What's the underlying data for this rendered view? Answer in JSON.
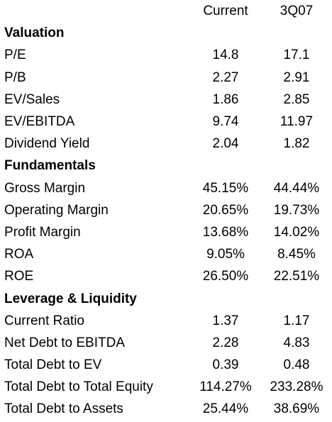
{
  "columns": {
    "current": "Current",
    "prior": "3Q07"
  },
  "sections": [
    {
      "title": "Valuation",
      "rows": [
        {
          "label": "P/E",
          "current": "14.8",
          "prior": "17.1"
        },
        {
          "label": "P/B",
          "current": "2.27",
          "prior": "2.91"
        },
        {
          "label": "EV/Sales",
          "current": "1.86",
          "prior": "2.85"
        },
        {
          "label": "EV/EBITDA",
          "current": "9.74",
          "prior": "11.97"
        },
        {
          "label": "Dividend Yield",
          "current": "2.04",
          "prior": "1.82"
        }
      ]
    },
    {
      "title": "Fundamentals",
      "rows": [
        {
          "label": "Gross Margin",
          "current": "45.15%",
          "prior": "44.44%"
        },
        {
          "label": "Operating Margin",
          "current": "20.65%",
          "prior": "19.73%"
        },
        {
          "label": "Profit Margin",
          "current": "13.68%",
          "prior": "14.02%"
        },
        {
          "label": "ROA",
          "current": "9.05%",
          "prior": "8.45%"
        },
        {
          "label": "ROE",
          "current": "26.50%",
          "prior": "22.51%"
        }
      ]
    },
    {
      "title": "Leverage & Liquidity",
      "rows": [
        {
          "label": "Current Ratio",
          "current": "1.37",
          "prior": "1.17"
        },
        {
          "label": "Net Debt to EBITDA",
          "current": "2.28",
          "prior": "4.83"
        },
        {
          "label": "Total Debt to EV",
          "current": "0.39",
          "prior": "0.48"
        },
        {
          "label": "Total Debt to Total Equity",
          "current": "114.27%",
          "prior": "233.28%"
        },
        {
          "label": "Total Debt to Assets",
          "current": "25.44%",
          "prior": "38.69%"
        }
      ]
    }
  ]
}
